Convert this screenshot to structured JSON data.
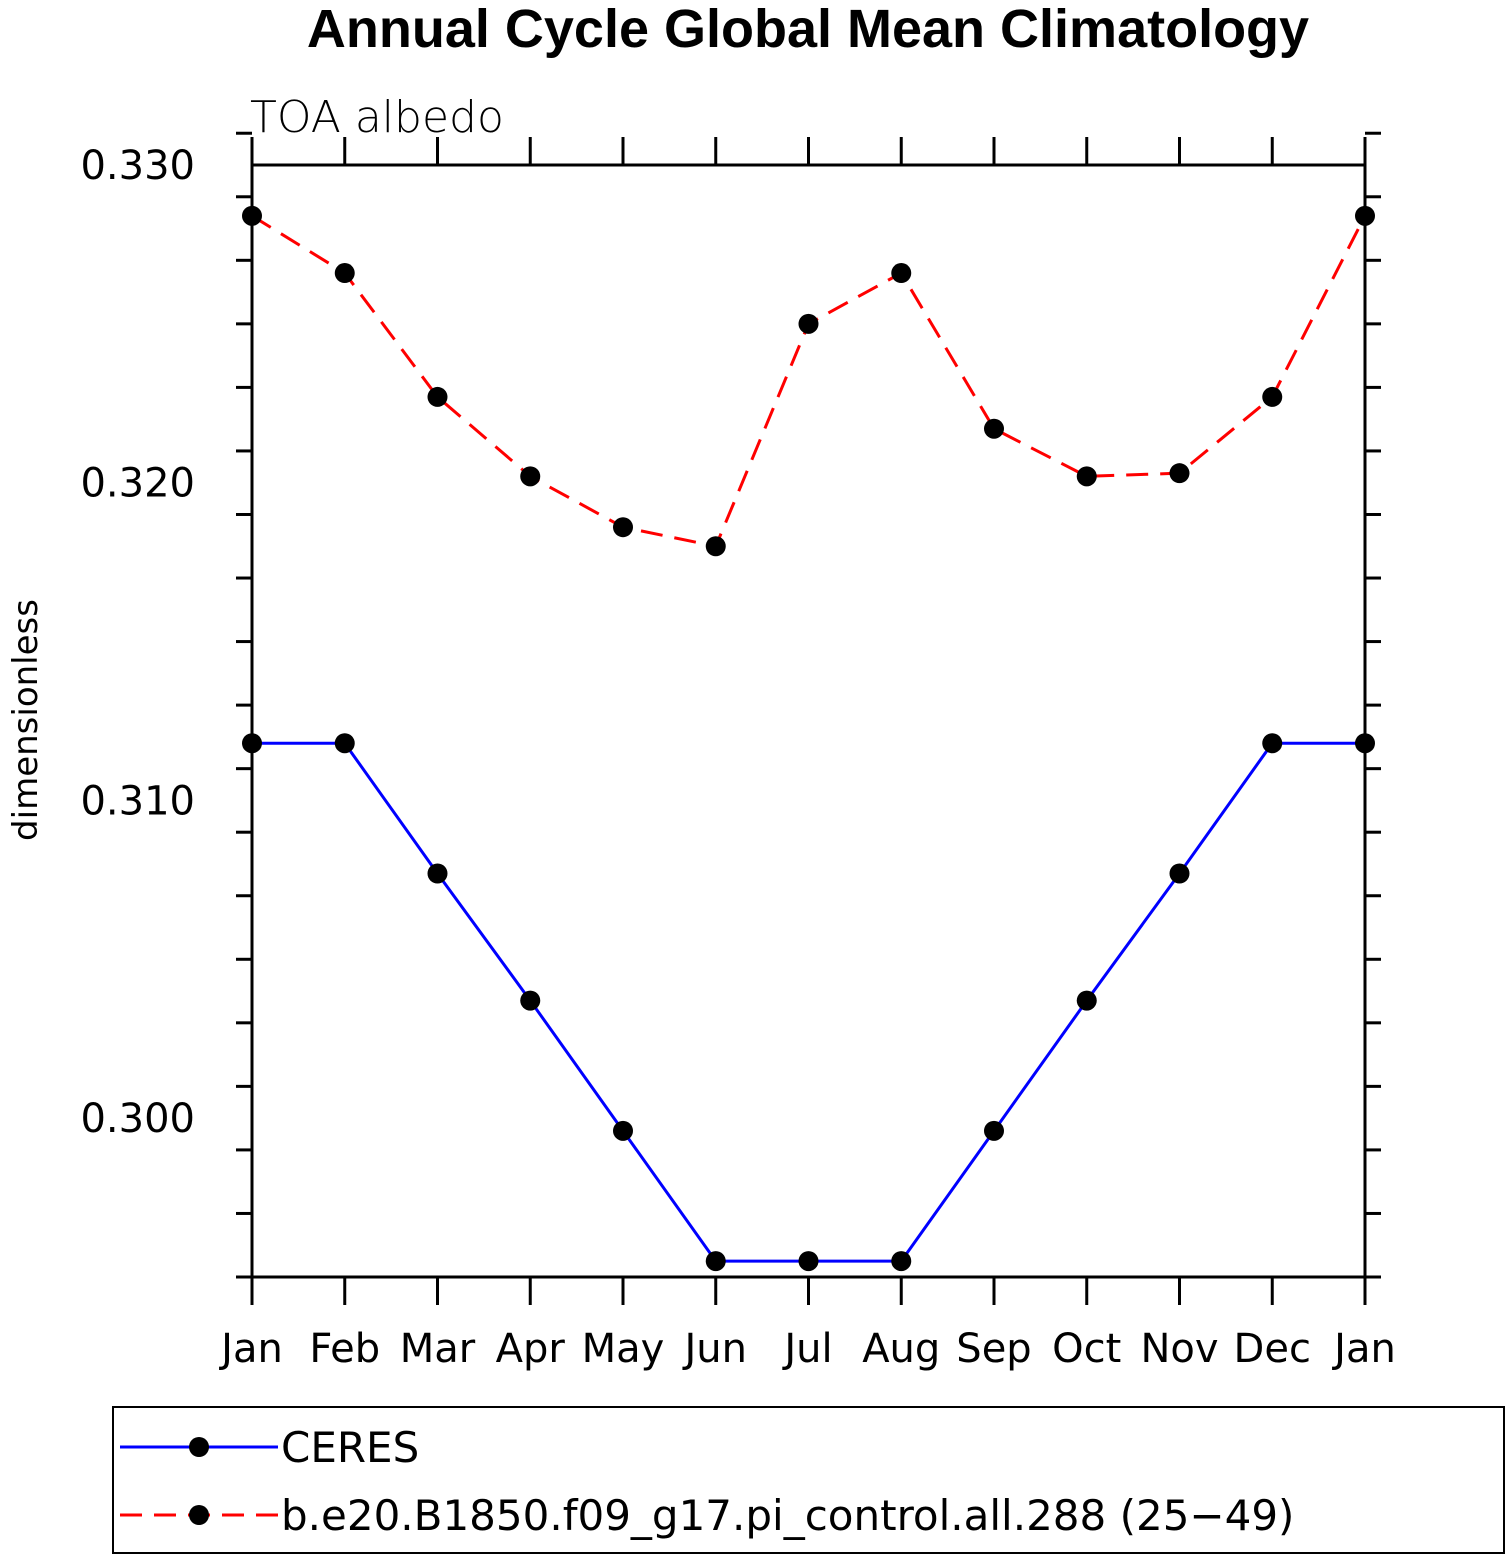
{
  "chart_data": {
    "type": "line",
    "title": "Annual Cycle Global Mean Climatology",
    "subtitle": "TOA albedo",
    "xlabel": "",
    "ylabel": "dimensionless",
    "categories": [
      "Jan",
      "Feb",
      "Mar",
      "Apr",
      "May",
      "Jun",
      "Jul",
      "Aug",
      "Sep",
      "Oct",
      "Nov",
      "Dec",
      "Jan"
    ],
    "ylim": [
      0.295,
      0.33
    ],
    "yticks": [
      0.3,
      0.31,
      0.32,
      0.33
    ],
    "ytick_labels": [
      "0.300",
      "0.310",
      "0.320",
      "0.330"
    ],
    "grid": false,
    "legend_position": "bottom",
    "series": [
      {
        "name": "CERES",
        "color": "#0000ff",
        "line_style": "solid",
        "marker": "filled-circle",
        "values": [
          0.3118,
          0.3118,
          0.3077,
          0.3037,
          0.2996,
          0.2955,
          0.2955,
          0.2955,
          0.2996,
          0.3037,
          0.3077,
          0.3118,
          0.3118
        ]
      },
      {
        "name": "b.e20.B1850.f09_g17.pi_control.all.288 (25−49)",
        "color": "#ff0000",
        "line_style": "dashed",
        "marker": "filled-circle",
        "values": [
          0.3284,
          0.3266,
          0.3227,
          0.3202,
          0.3186,
          0.318,
          0.325,
          0.3266,
          0.3217,
          0.3202,
          0.3203,
          0.3227,
          0.3284
        ]
      }
    ]
  }
}
